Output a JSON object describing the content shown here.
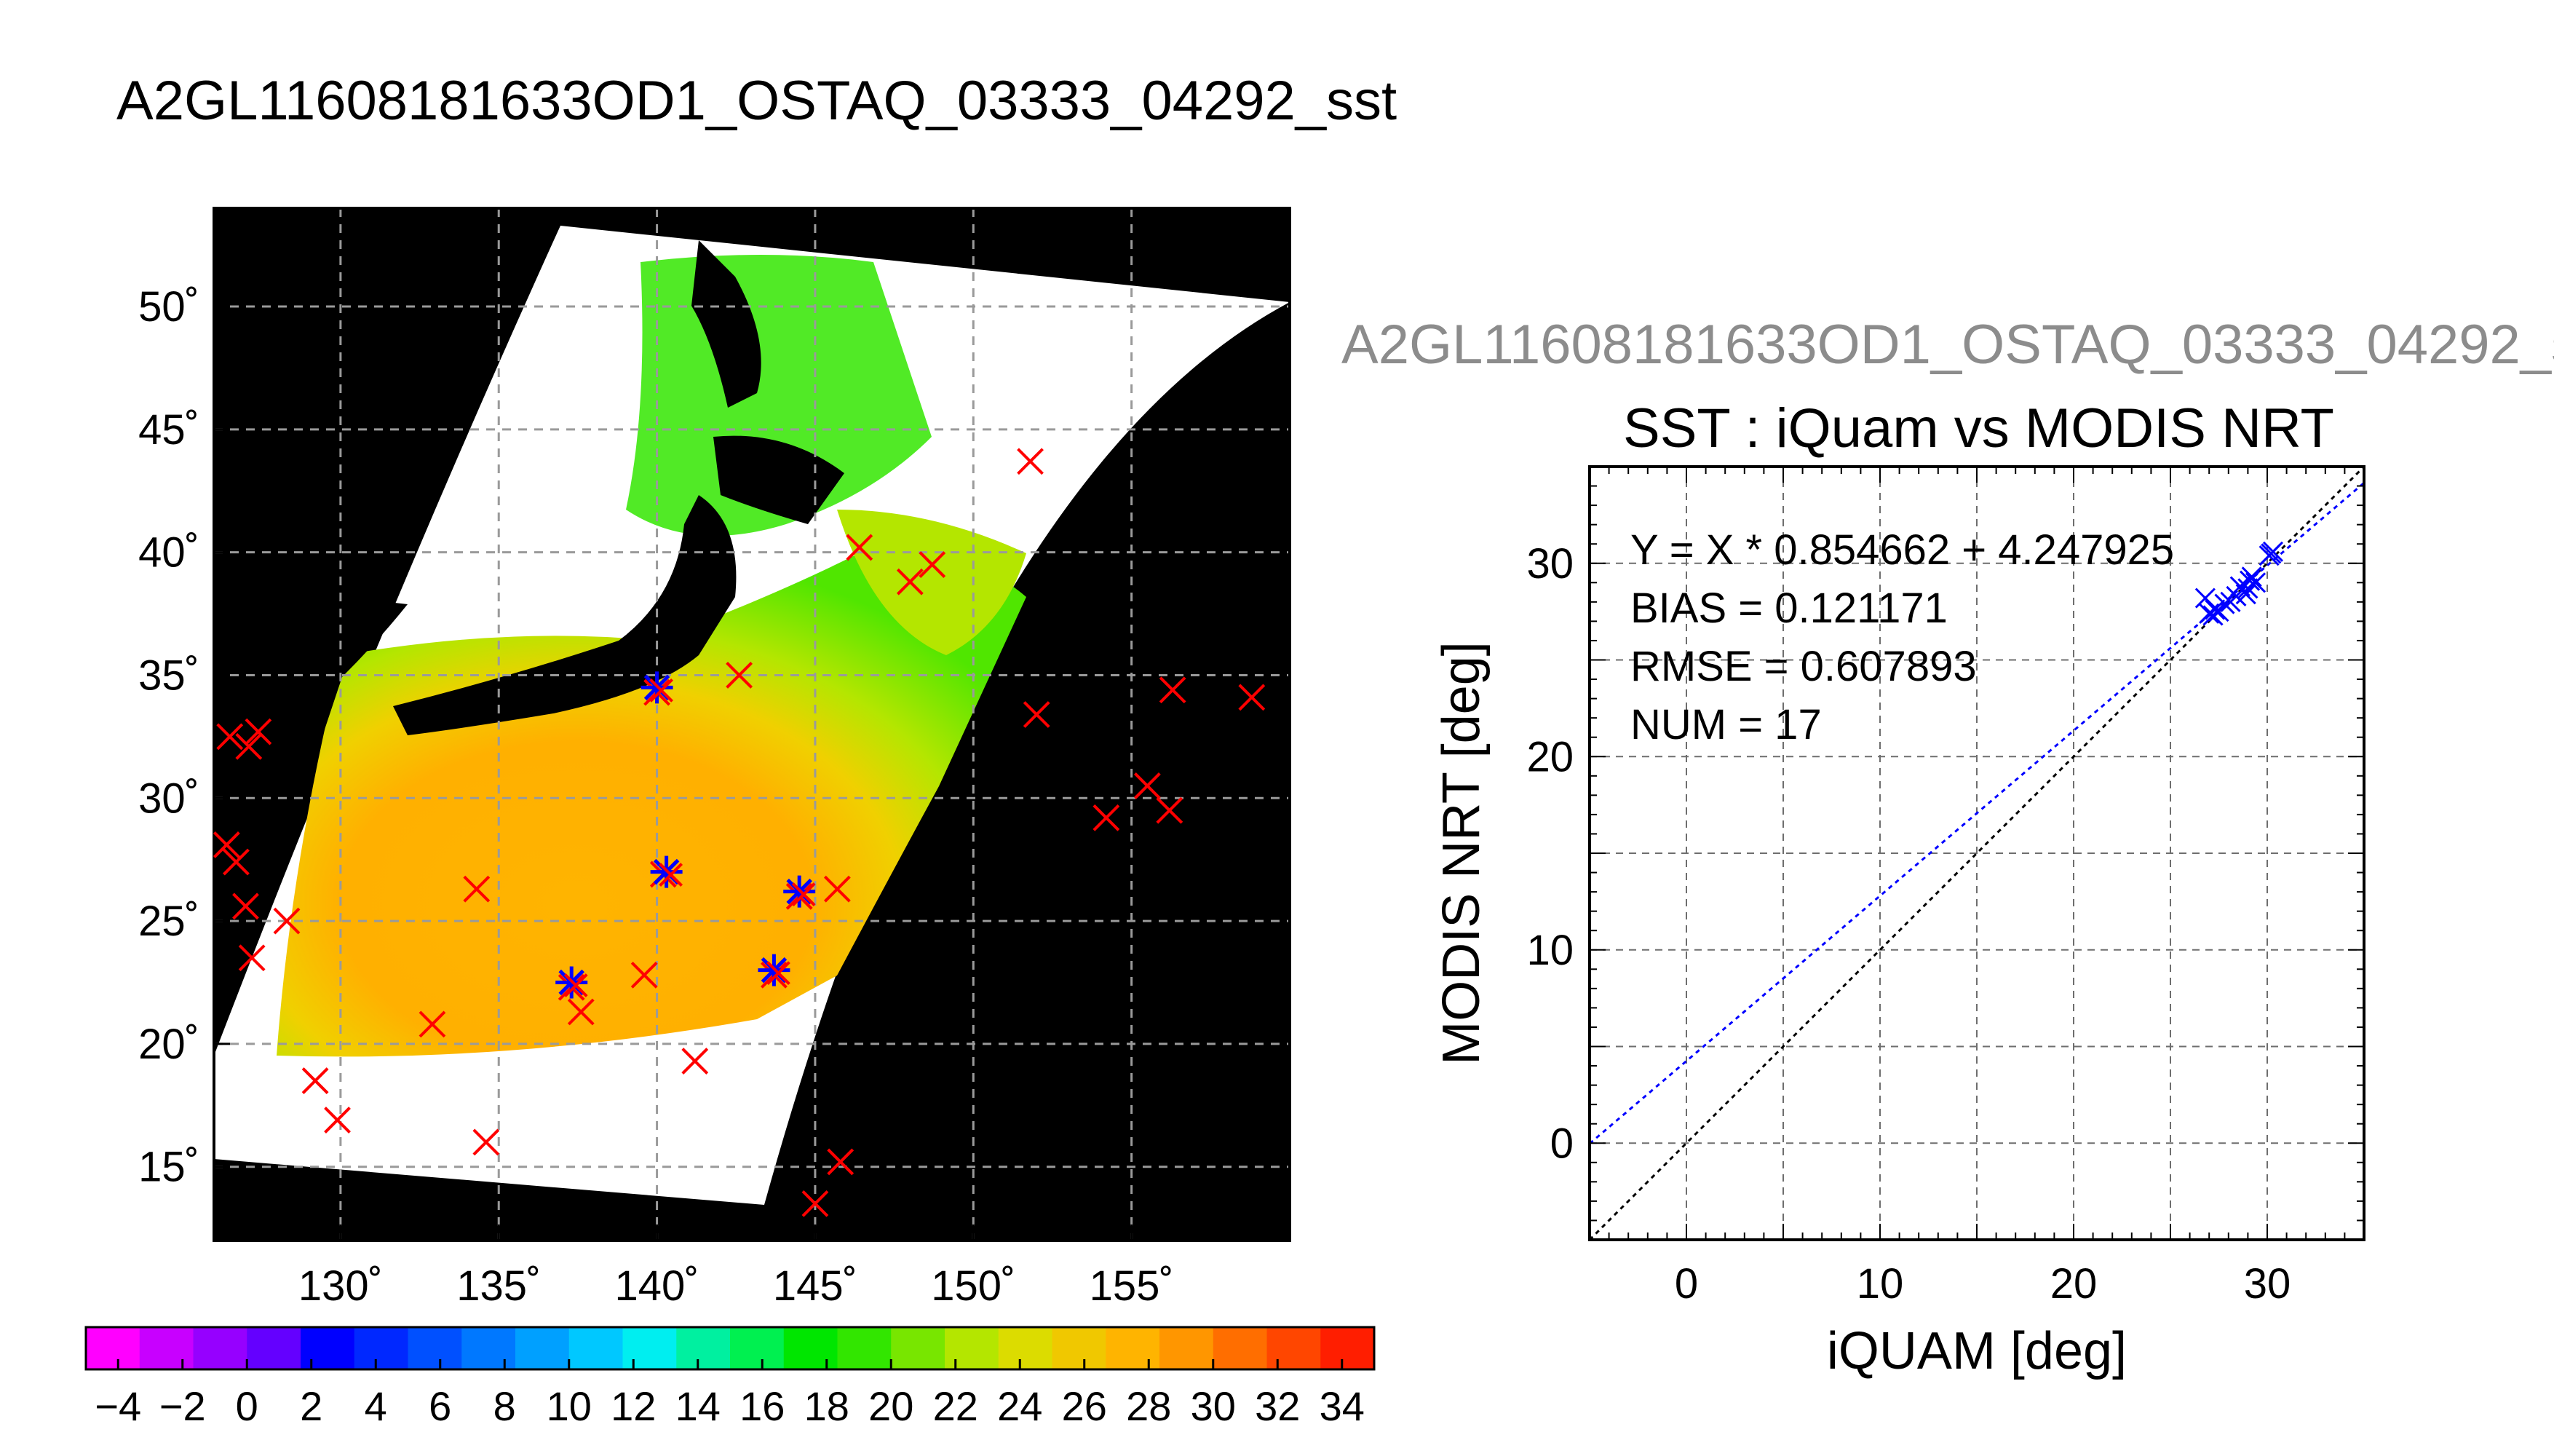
{
  "main_title": "A2GL11608181633OD1_OSTAQ_03333_04292_sst",
  "sub_title": "A2GL11608181633OD1_OSTAQ_03333_04292_s",
  "colors": {
    "land": "#000000",
    "no_data": "#ffffff",
    "match_marker": "#ff0000",
    "modis_marker": "#0000ff",
    "fit_line": "#0000ff",
    "one_to_one_line": "#000000",
    "grid": "#9a9a9a"
  },
  "chart_data": [
    {
      "type": "heatmap",
      "title": "A2GL11608181633OD1_OSTAQ_03333_04292_sst",
      "xlim": [
        126,
        160
      ],
      "ylim": [
        12,
        54
      ],
      "x_ticks": [
        130,
        135,
        140,
        145,
        150,
        155
      ],
      "x_tick_labels": [
        "130˚",
        "135˚",
        "140˚",
        "145˚",
        "150˚",
        "155˚"
      ],
      "y_ticks": [
        15,
        20,
        25,
        30,
        35,
        40,
        45,
        50
      ],
      "y_tick_labels": [
        "15˚",
        "20˚",
        "25˚",
        "30˚",
        "35˚",
        "40˚",
        "45˚",
        "50˚"
      ],
      "grid": true,
      "grid_style": "dashed",
      "colorbar": {
        "min": -5,
        "max": 35,
        "tick_values": [
          -4,
          -2,
          0,
          2,
          4,
          6,
          8,
          10,
          12,
          14,
          16,
          18,
          20,
          22,
          24,
          26,
          28,
          30,
          32,
          34
        ],
        "tick_labels": [
          "−4",
          "−2",
          "0",
          "2",
          "4",
          "6",
          "8",
          "10",
          "12",
          "14",
          "16",
          "18",
          "20",
          "22",
          "24",
          "26",
          "28",
          "30",
          "32",
          "34"
        ],
        "colors": [
          "#ff00ff",
          "#c800ff",
          "#9600ff",
          "#6400ff",
          "#0000ff",
          "#0028ff",
          "#0050ff",
          "#0078ff",
          "#00a0ff",
          "#00c8ff",
          "#00eef0",
          "#00f0a0",
          "#00f050",
          "#00e600",
          "#32e600",
          "#78e600",
          "#b4e600",
          "#dcdc00",
          "#f0c800",
          "#ffb400",
          "#ff9600",
          "#ff6e00",
          "#ff4600",
          "#ff1e00"
        ]
      },
      "matchups": [
        {
          "lon": 126.5,
          "lat": 32.5
        },
        {
          "lon": 127.1,
          "lat": 32.1
        },
        {
          "lon": 127.4,
          "lat": 32.7
        },
        {
          "lon": 126.4,
          "lat": 28.1
        },
        {
          "lon": 126.7,
          "lat": 27.4
        },
        {
          "lon": 127.0,
          "lat": 25.6
        },
        {
          "lon": 127.2,
          "lat": 23.5
        },
        {
          "lon": 128.3,
          "lat": 25.0
        },
        {
          "lon": 129.2,
          "lat": 18.5
        },
        {
          "lon": 129.9,
          "lat": 16.9
        },
        {
          "lon": 132.9,
          "lat": 20.8
        },
        {
          "lon": 134.3,
          "lat": 26.3
        },
        {
          "lon": 134.6,
          "lat": 16.0
        },
        {
          "lon": 137.3,
          "lat": 22.3
        },
        {
          "lon": 137.6,
          "lat": 21.3
        },
        {
          "lon": 139.6,
          "lat": 22.8
        },
        {
          "lon": 140.0,
          "lat": 34.3
        },
        {
          "lon": 140.2,
          "lat": 26.9
        },
        {
          "lon": 141.2,
          "lat": 19.3
        },
        {
          "lon": 142.6,
          "lat": 35.0
        },
        {
          "lon": 143.7,
          "lat": 22.8
        },
        {
          "lon": 144.5,
          "lat": 26.0
        },
        {
          "lon": 145.7,
          "lat": 26.3
        },
        {
          "lon": 145.0,
          "lat": 13.5
        },
        {
          "lon": 145.8,
          "lat": 15.2
        },
        {
          "lon": 146.4,
          "lat": 40.2
        },
        {
          "lon": 148.0,
          "lat": 38.8
        },
        {
          "lon": 148.7,
          "lat": 39.5
        },
        {
          "lon": 151.8,
          "lat": 43.7
        },
        {
          "lon": 152.0,
          "lat": 33.4
        },
        {
          "lon": 154.2,
          "lat": 29.2
        },
        {
          "lon": 155.5,
          "lat": 30.5
        },
        {
          "lon": 156.2,
          "lat": 29.5
        },
        {
          "lon": 156.3,
          "lat": 34.4
        },
        {
          "lon": 158.8,
          "lat": 34.1
        }
      ],
      "modis_matchups": [
        {
          "lon": 140.0,
          "lat": 34.5
        },
        {
          "lon": 140.3,
          "lat": 27.0
        },
        {
          "lon": 137.3,
          "lat": 22.5
        },
        {
          "lon": 143.7,
          "lat": 23.0
        },
        {
          "lon": 144.5,
          "lat": 26.2
        }
      ]
    },
    {
      "type": "scatter",
      "title": "SST : iQuam vs MODIS NRT",
      "xlabel": "iQUAM [deg]",
      "ylabel": "MODIS NRT [deg]",
      "xlim": [
        -5,
        35
      ],
      "ylim": [
        -5,
        35
      ],
      "x_ticks": [
        0,
        10,
        20,
        30
      ],
      "y_ticks": [
        0,
        10,
        20,
        30
      ],
      "grid": true,
      "grid_style": "dashed",
      "annotations": [
        "Y = X * 0.854662 + 4.247925",
        "BIAS = 0.121171",
        "RMSE = 0.607893",
        "NUM = 17"
      ],
      "fit": {
        "slope": 0.854662,
        "intercept": 4.247925
      },
      "one_to_one": true,
      "points": [
        {
          "x": 26.8,
          "y": 28.2
        },
        {
          "x": 27.0,
          "y": 27.4
        },
        {
          "x": 27.2,
          "y": 27.3
        },
        {
          "x": 27.3,
          "y": 27.6
        },
        {
          "x": 27.5,
          "y": 27.5
        },
        {
          "x": 27.8,
          "y": 27.9
        },
        {
          "x": 28.1,
          "y": 28.0
        },
        {
          "x": 28.4,
          "y": 28.3
        },
        {
          "x": 28.6,
          "y": 28.8
        },
        {
          "x": 28.9,
          "y": 28.4
        },
        {
          "x": 29.0,
          "y": 28.7
        },
        {
          "x": 29.1,
          "y": 29.1
        },
        {
          "x": 29.2,
          "y": 29.3
        },
        {
          "x": 29.4,
          "y": 29.0
        },
        {
          "x": 30.1,
          "y": 30.4
        },
        {
          "x": 30.3,
          "y": 30.6
        },
        {
          "x": 30.2,
          "y": 30.5
        }
      ]
    }
  ]
}
